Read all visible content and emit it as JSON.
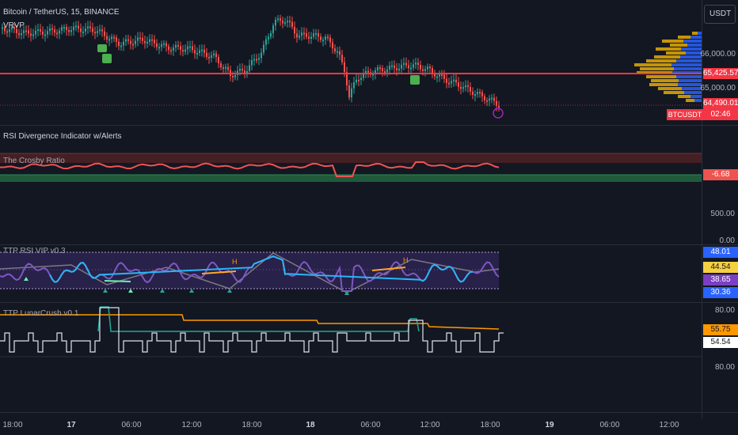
{
  "header": {
    "symbol_title": "Bitcoin / TetherUS, 15, BINANCE",
    "vrvp_label": "VRVP",
    "currency_button": "USDT"
  },
  "price_pane": {
    "ticks": [
      "66,000.00",
      "65,000.00"
    ],
    "line_price": "65,425.57",
    "last_price": "64,490.01",
    "symbol_tag": "BTCUSDT",
    "countdown": "02:46",
    "line_color": "#f23645",
    "up_color": "#26a69a",
    "down_color": "#ef5350"
  },
  "indicators": {
    "rsi_divergence": "RSI Divergence Indicator w/Alerts",
    "crosby": {
      "title": "The Crosby Ratio",
      "value": "-6.68"
    },
    "empty_pane_ticks": [
      "500.00",
      "0.00"
    ],
    "rsi_vip": {
      "title": "TTP RSI VIP v0.3",
      "values": [
        "48.01",
        "44.54",
        "38.65",
        "30.36"
      ],
      "colors": [
        "#2962ff",
        "#f5d142",
        "#7b3fc4",
        "#2962ff"
      ],
      "marker_h": "H"
    },
    "lunarcrush": {
      "title": "TTP LunarCrush v0.1",
      "values": [
        "55.75",
        "54.54"
      ],
      "ticks": [
        "80.00",
        "80.00"
      ],
      "colors": [
        "#ff9800",
        "#ffffff"
      ]
    }
  },
  "time_axis": [
    "18:00",
    "17",
    "06:00",
    "12:00",
    "18:00",
    "18",
    "06:00",
    "12:00",
    "18:00",
    "19",
    "06:00",
    "12:00"
  ]
}
